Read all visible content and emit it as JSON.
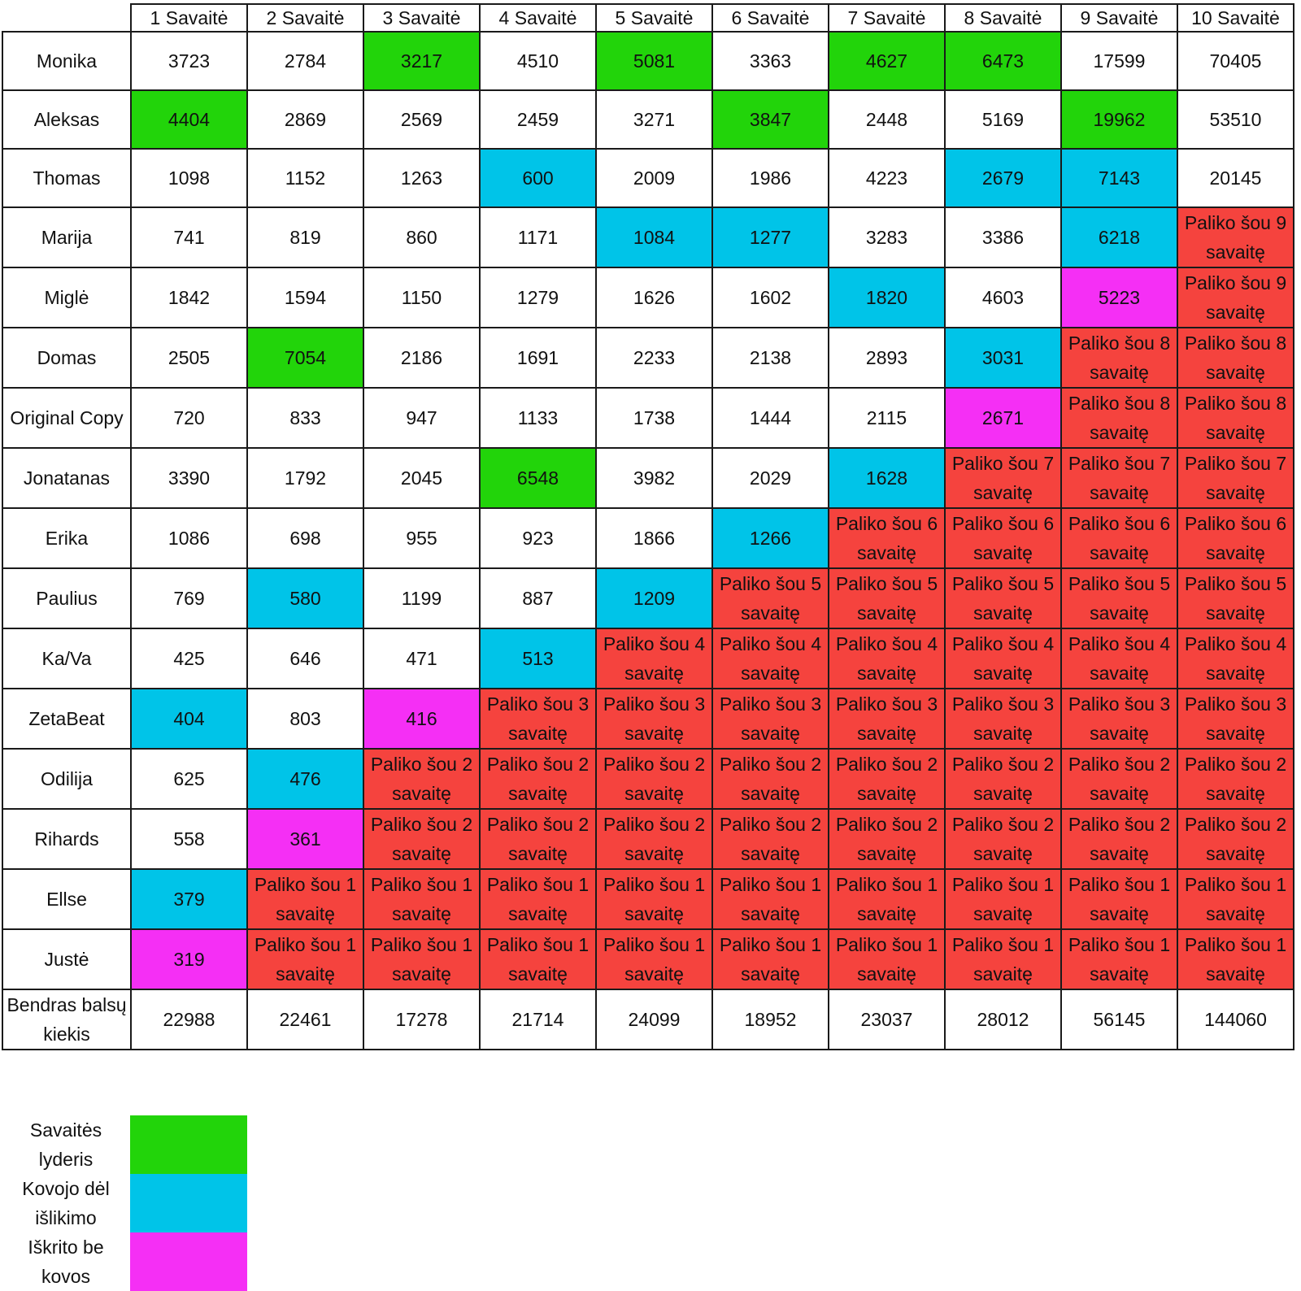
{
  "table": {
    "corner": "",
    "weeks": [
      "1 Savaitė",
      "2 Savaitė",
      "3 Savaitė",
      "4 Savaitė",
      "5 Savaitė",
      "6 Savaitė",
      "7 Savaitė",
      "8 Savaitė",
      "9 Savaitė",
      "10 Savaitė"
    ],
    "rows": [
      {
        "name": "Monika",
        "cells": [
          {
            "v": "3723",
            "s": ""
          },
          {
            "v": "2784",
            "s": ""
          },
          {
            "v": "3217",
            "s": "leader"
          },
          {
            "v": "4510",
            "s": ""
          },
          {
            "v": "5081",
            "s": "leader"
          },
          {
            "v": "3363",
            "s": ""
          },
          {
            "v": "4627",
            "s": "leader"
          },
          {
            "v": "6473",
            "s": "leader"
          },
          {
            "v": "17599",
            "s": ""
          },
          {
            "v": "70405",
            "s": ""
          }
        ]
      },
      {
        "name": "Aleksas",
        "cells": [
          {
            "v": "4404",
            "s": "leader"
          },
          {
            "v": "2869",
            "s": ""
          },
          {
            "v": "2569",
            "s": ""
          },
          {
            "v": "2459",
            "s": ""
          },
          {
            "v": "3271",
            "s": ""
          },
          {
            "v": "3847",
            "s": "leader"
          },
          {
            "v": "2448",
            "s": ""
          },
          {
            "v": "5169",
            "s": ""
          },
          {
            "v": "19962",
            "s": "leader"
          },
          {
            "v": "53510",
            "s": ""
          }
        ]
      },
      {
        "name": "Thomas",
        "cells": [
          {
            "v": "1098",
            "s": ""
          },
          {
            "v": "1152",
            "s": ""
          },
          {
            "v": "1263",
            "s": ""
          },
          {
            "v": "600",
            "s": "fight"
          },
          {
            "v": "2009",
            "s": ""
          },
          {
            "v": "1986",
            "s": ""
          },
          {
            "v": "4223",
            "s": ""
          },
          {
            "v": "2679",
            "s": "fight"
          },
          {
            "v": "7143",
            "s": "fight"
          },
          {
            "v": "20145",
            "s": ""
          }
        ]
      },
      {
        "name": "Marija",
        "cells": [
          {
            "v": "741",
            "s": ""
          },
          {
            "v": "819",
            "s": ""
          },
          {
            "v": "860",
            "s": ""
          },
          {
            "v": "1171",
            "s": ""
          },
          {
            "v": "1084",
            "s": "fight"
          },
          {
            "v": "1277",
            "s": "fight"
          },
          {
            "v": "3283",
            "s": ""
          },
          {
            "v": "3386",
            "s": ""
          },
          {
            "v": "6218",
            "s": "fight"
          },
          {
            "v": "Paliko šou 9 savaitę",
            "s": "left"
          }
        ]
      },
      {
        "name": "Miglė",
        "cells": [
          {
            "v": "1842",
            "s": ""
          },
          {
            "v": "1594",
            "s": ""
          },
          {
            "v": "1150",
            "s": ""
          },
          {
            "v": "1279",
            "s": ""
          },
          {
            "v": "1626",
            "s": ""
          },
          {
            "v": "1602",
            "s": ""
          },
          {
            "v": "1820",
            "s": "fight"
          },
          {
            "v": "4603",
            "s": ""
          },
          {
            "v": "5223",
            "s": "nofight"
          },
          {
            "v": "Paliko šou 9 savaitę",
            "s": "left"
          }
        ]
      },
      {
        "name": "Domas",
        "cells": [
          {
            "v": "2505",
            "s": ""
          },
          {
            "v": "7054",
            "s": "leader"
          },
          {
            "v": "2186",
            "s": ""
          },
          {
            "v": "1691",
            "s": ""
          },
          {
            "v": "2233",
            "s": ""
          },
          {
            "v": "2138",
            "s": ""
          },
          {
            "v": "2893",
            "s": ""
          },
          {
            "v": "3031",
            "s": "fight"
          },
          {
            "v": "Paliko šou 8 savaitę",
            "s": "left"
          },
          {
            "v": "Paliko šou 8 savaitę",
            "s": "left"
          }
        ]
      },
      {
        "name": "Original Copy",
        "cells": [
          {
            "v": "720",
            "s": ""
          },
          {
            "v": "833",
            "s": ""
          },
          {
            "v": "947",
            "s": ""
          },
          {
            "v": "1133",
            "s": ""
          },
          {
            "v": "1738",
            "s": ""
          },
          {
            "v": "1444",
            "s": ""
          },
          {
            "v": "2115",
            "s": ""
          },
          {
            "v": "2671",
            "s": "nofight"
          },
          {
            "v": "Paliko šou 8 savaitę",
            "s": "left"
          },
          {
            "v": "Paliko šou 8 savaitę",
            "s": "left"
          }
        ]
      },
      {
        "name": "Jonatanas",
        "cells": [
          {
            "v": "3390",
            "s": ""
          },
          {
            "v": "1792",
            "s": ""
          },
          {
            "v": "2045",
            "s": ""
          },
          {
            "v": "6548",
            "s": "leader"
          },
          {
            "v": "3982",
            "s": ""
          },
          {
            "v": "2029",
            "s": ""
          },
          {
            "v": "1628",
            "s": "fight"
          },
          {
            "v": "Paliko šou 7 savaitę",
            "s": "left"
          },
          {
            "v": "Paliko šou 7 savaitę",
            "s": "left"
          },
          {
            "v": "Paliko šou 7 savaitę",
            "s": "left"
          }
        ]
      },
      {
        "name": "Erika",
        "cells": [
          {
            "v": "1086",
            "s": ""
          },
          {
            "v": "698",
            "s": ""
          },
          {
            "v": "955",
            "s": ""
          },
          {
            "v": "923",
            "s": ""
          },
          {
            "v": "1866",
            "s": ""
          },
          {
            "v": "1266",
            "s": "fight"
          },
          {
            "v": "Paliko šou 6 savaitę",
            "s": "left"
          },
          {
            "v": "Paliko šou 6 savaitę",
            "s": "left"
          },
          {
            "v": "Paliko šou 6 savaitę",
            "s": "left"
          },
          {
            "v": "Paliko šou 6 savaitę",
            "s": "left"
          }
        ]
      },
      {
        "name": "Paulius",
        "cells": [
          {
            "v": "769",
            "s": ""
          },
          {
            "v": "580",
            "s": "fight"
          },
          {
            "v": "1199",
            "s": ""
          },
          {
            "v": "887",
            "s": ""
          },
          {
            "v": "1209",
            "s": "fight"
          },
          {
            "v": "Paliko šou 5 savaitę",
            "s": "left"
          },
          {
            "v": "Paliko šou 5 savaitę",
            "s": "left"
          },
          {
            "v": "Paliko šou 5 savaitę",
            "s": "left"
          },
          {
            "v": "Paliko šou 5 savaitę",
            "s": "left"
          },
          {
            "v": "Paliko šou 5 savaitę",
            "s": "left"
          }
        ]
      },
      {
        "name": "Ka/Va",
        "cells": [
          {
            "v": "425",
            "s": ""
          },
          {
            "v": "646",
            "s": ""
          },
          {
            "v": "471",
            "s": ""
          },
          {
            "v": "513",
            "s": "fight"
          },
          {
            "v": "Paliko šou 4 savaitę",
            "s": "left"
          },
          {
            "v": "Paliko šou 4 savaitę",
            "s": "left"
          },
          {
            "v": "Paliko šou 4 savaitę",
            "s": "left"
          },
          {
            "v": "Paliko šou 4 savaitę",
            "s": "left"
          },
          {
            "v": "Paliko šou 4 savaitę",
            "s": "left"
          },
          {
            "v": "Paliko šou 4 savaitę",
            "s": "left"
          }
        ]
      },
      {
        "name": "ZetaBeat",
        "cells": [
          {
            "v": "404",
            "s": "fight"
          },
          {
            "v": "803",
            "s": ""
          },
          {
            "v": "416",
            "s": "nofight"
          },
          {
            "v": "Paliko šou 3 savaitę",
            "s": "left"
          },
          {
            "v": "Paliko šou 3 savaitę",
            "s": "left"
          },
          {
            "v": "Paliko šou 3 savaitę",
            "s": "left"
          },
          {
            "v": "Paliko šou 3 savaitę",
            "s": "left"
          },
          {
            "v": "Paliko šou 3 savaitę",
            "s": "left"
          },
          {
            "v": "Paliko šou 3 savaitę",
            "s": "left"
          },
          {
            "v": "Paliko šou 3 savaitę",
            "s": "left"
          }
        ]
      },
      {
        "name": "Odilija",
        "cells": [
          {
            "v": "625",
            "s": ""
          },
          {
            "v": "476",
            "s": "fight"
          },
          {
            "v": "Paliko šou 2 savaitę",
            "s": "left"
          },
          {
            "v": "Paliko šou 2 savaitę",
            "s": "left"
          },
          {
            "v": "Paliko šou 2 savaitę",
            "s": "left"
          },
          {
            "v": "Paliko šou 2 savaitę",
            "s": "left"
          },
          {
            "v": "Paliko šou 2 savaitę",
            "s": "left"
          },
          {
            "v": "Paliko šou 2 savaitę",
            "s": "left"
          },
          {
            "v": "Paliko šou 2 savaitę",
            "s": "left"
          },
          {
            "v": "Paliko šou 2 savaitę",
            "s": "left"
          }
        ]
      },
      {
        "name": "Rihards",
        "cells": [
          {
            "v": "558",
            "s": ""
          },
          {
            "v": "361",
            "s": "nofight"
          },
          {
            "v": "Paliko šou 2 savaitę",
            "s": "left"
          },
          {
            "v": "Paliko šou 2 savaitę",
            "s": "left"
          },
          {
            "v": "Paliko šou 2 savaitę",
            "s": "left"
          },
          {
            "v": "Paliko šou 2 savaitę",
            "s": "left"
          },
          {
            "v": "Paliko šou 2 savaitę",
            "s": "left"
          },
          {
            "v": "Paliko šou 2 savaitę",
            "s": "left"
          },
          {
            "v": "Paliko šou 2 savaitę",
            "s": "left"
          },
          {
            "v": "Paliko šou 2 savaitę",
            "s": "left"
          }
        ]
      },
      {
        "name": "Ellse",
        "cells": [
          {
            "v": "379",
            "s": "fight"
          },
          {
            "v": "Paliko šou 1 savaitę",
            "s": "left"
          },
          {
            "v": "Paliko šou 1 savaitę",
            "s": "left"
          },
          {
            "v": "Paliko šou 1 savaitę",
            "s": "left"
          },
          {
            "v": "Paliko šou 1 savaitę",
            "s": "left"
          },
          {
            "v": "Paliko šou 1 savaitę",
            "s": "left"
          },
          {
            "v": "Paliko šou 1 savaitę",
            "s": "left"
          },
          {
            "v": "Paliko šou 1 savaitę",
            "s": "left"
          },
          {
            "v": "Paliko šou 1 savaitę",
            "s": "left"
          },
          {
            "v": "Paliko šou 1 savaitę",
            "s": "left"
          }
        ]
      },
      {
        "name": "Justė",
        "cells": [
          {
            "v": "319",
            "s": "nofight"
          },
          {
            "v": "Paliko šou 1 savaitę",
            "s": "left"
          },
          {
            "v": "Paliko šou 1 savaitę",
            "s": "left"
          },
          {
            "v": "Paliko šou 1 savaitę",
            "s": "left"
          },
          {
            "v": "Paliko šou 1 savaitę",
            "s": "left"
          },
          {
            "v": "Paliko šou 1 savaitę",
            "s": "left"
          },
          {
            "v": "Paliko šou 1 savaitę",
            "s": "left"
          },
          {
            "v": "Paliko šou 1 savaitę",
            "s": "left"
          },
          {
            "v": "Paliko šou 1 savaitę",
            "s": "left"
          },
          {
            "v": "Paliko šou 1 savaitę",
            "s": "left"
          }
        ]
      }
    ],
    "total": {
      "label": "Bendras balsų kiekis",
      "values": [
        "22988",
        "22461",
        "17278",
        "21714",
        "24099",
        "18952",
        "23037",
        "28012",
        "56145",
        "144060"
      ]
    }
  },
  "legend": [
    {
      "label": "Savaitės lyderis",
      "status": "leader"
    },
    {
      "label": "Kovojo dėl išlikimo",
      "status": "fight"
    },
    {
      "label": "Iškrito be kovos",
      "status": "nofight"
    }
  ],
  "colors": {
    "leader": "#22d40a",
    "fight": "#00c4e8",
    "nofight": "#f52ff5",
    "left": "#f5433e"
  }
}
